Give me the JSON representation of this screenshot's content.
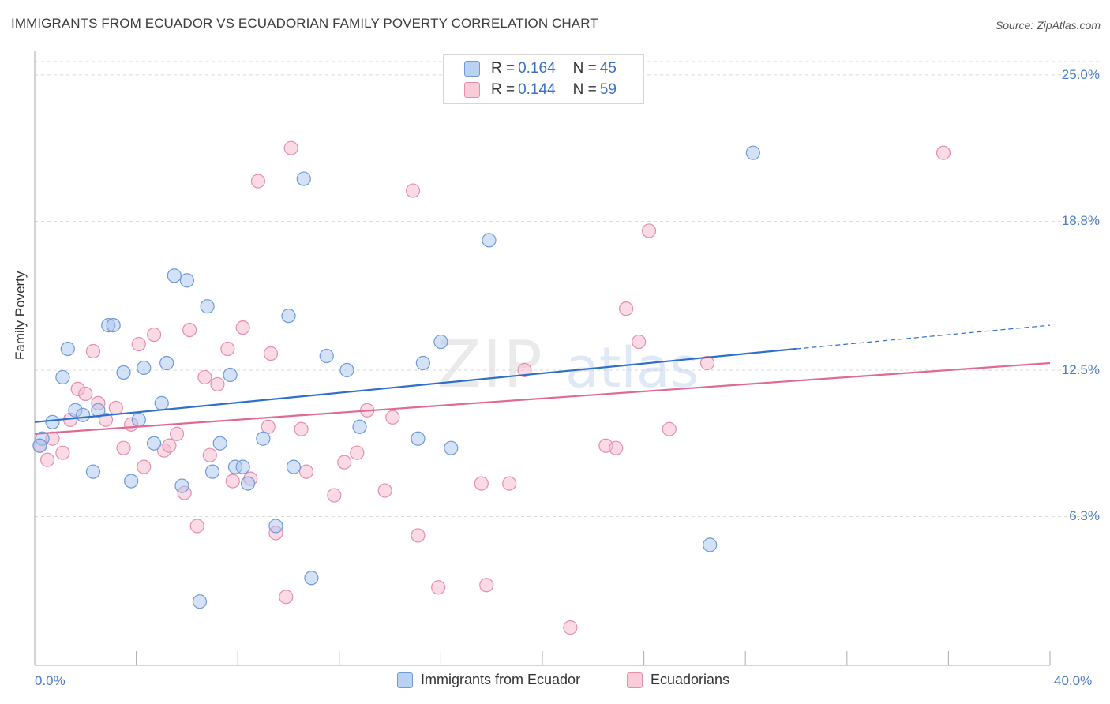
{
  "header": {
    "title": "IMMIGRANTS FROM ECUADOR VS ECUADORIAN FAMILY POVERTY CORRELATION CHART",
    "source": "Source: ZipAtlas.com"
  },
  "watermark": {
    "part1": "ZIP",
    "part2": "atlas"
  },
  "legend": {
    "rows": [
      {
        "r_label": "R = ",
        "r_value": "0.164",
        "n_label": "N = ",
        "n_value": "45"
      },
      {
        "r_label": "R = ",
        "r_value": "0.144",
        "n_label": "N = ",
        "n_value": "59"
      }
    ]
  },
  "bottom_legend": {
    "series1": "Immigrants from Ecuador",
    "series2": "Ecuadorians"
  },
  "colors": {
    "blue_fill": "#a9c6ef",
    "blue_stroke": "#6f9ad6",
    "blue_line": "#2f6fcc",
    "pink_fill": "#f5b6ca",
    "pink_stroke": "#e58fab",
    "pink_line": "#e06a93",
    "tick_text": "#4a7cc9"
  },
  "chart_data": {
    "type": "scatter",
    "title": "IMMIGRANTS FROM ECUADOR VS ECUADORIAN FAMILY POVERTY CORRELATION CHART",
    "xlabel": "",
    "ylabel": "Family Poverty",
    "xlim": [
      0,
      40
    ],
    "ylim": [
      0,
      26
    ],
    "x_tick_labels": [
      "0.0%",
      "40.0%"
    ],
    "y_ticks": [
      {
        "value": 6.3,
        "label": "6.3%"
      },
      {
        "value": 12.5,
        "label": "12.5%"
      },
      {
        "value": 18.8,
        "label": "18.8%"
      },
      {
        "value": 25.0,
        "label": "25.0%"
      }
    ],
    "grid": "horizontal dashed",
    "legend_position": "top-center",
    "series": [
      {
        "name": "Immigrants from Ecuador",
        "color": "#a9c6ef",
        "trend": {
          "x0": 0,
          "y0": 10.3,
          "x1": 30,
          "y1": 13.4,
          "dashed_to_x": 40,
          "dashed_to_y": 14.4
        },
        "points": [
          [
            0.3,
            9.6
          ],
          [
            0.7,
            10.3
          ],
          [
            1.3,
            13.4
          ],
          [
            1.1,
            12.2
          ],
          [
            1.6,
            10.8
          ],
          [
            1.9,
            10.6
          ],
          [
            2.3,
            8.2
          ],
          [
            2.5,
            10.8
          ],
          [
            2.9,
            14.4
          ],
          [
            3.1,
            14.4
          ],
          [
            3.5,
            12.4
          ],
          [
            3.8,
            7.8
          ],
          [
            4.1,
            10.4
          ],
          [
            4.3,
            12.6
          ],
          [
            4.7,
            9.4
          ],
          [
            5.0,
            11.1
          ],
          [
            5.2,
            12.8
          ],
          [
            5.5,
            16.5
          ],
          [
            5.8,
            7.6
          ],
          [
            6.0,
            16.3
          ],
          [
            6.5,
            2.7
          ],
          [
            6.8,
            15.2
          ],
          [
            7.0,
            8.2
          ],
          [
            7.3,
            9.4
          ],
          [
            7.7,
            12.3
          ],
          [
            7.9,
            8.4
          ],
          [
            8.2,
            8.4
          ],
          [
            8.4,
            7.7
          ],
          [
            9.0,
            9.6
          ],
          [
            9.5,
            5.9
          ],
          [
            10.0,
            14.8
          ],
          [
            10.2,
            8.4
          ],
          [
            10.6,
            20.6
          ],
          [
            10.9,
            3.7
          ],
          [
            11.5,
            13.1
          ],
          [
            12.3,
            12.5
          ],
          [
            12.8,
            10.1
          ],
          [
            15.1,
            9.6
          ],
          [
            15.3,
            12.8
          ],
          [
            16.0,
            13.7
          ],
          [
            16.4,
            9.2
          ],
          [
            17.9,
            18.0
          ],
          [
            26.6,
            5.1
          ],
          [
            28.3,
            21.7
          ],
          [
            0.2,
            9.3
          ]
        ]
      },
      {
        "name": "Ecuadorians",
        "color": "#f5b6ca",
        "trend": {
          "x0": 0,
          "y0": 9.8,
          "x1": 40,
          "y1": 12.8
        },
        "points": [
          [
            0.2,
            9.3
          ],
          [
            0.5,
            8.7
          ],
          [
            0.7,
            9.6
          ],
          [
            1.1,
            9.0
          ],
          [
            1.4,
            10.4
          ],
          [
            1.7,
            11.7
          ],
          [
            2.0,
            11.5
          ],
          [
            2.3,
            13.3
          ],
          [
            2.5,
            11.1
          ],
          [
            2.8,
            10.4
          ],
          [
            3.2,
            10.9
          ],
          [
            3.5,
            9.2
          ],
          [
            3.8,
            10.2
          ],
          [
            4.1,
            13.6
          ],
          [
            4.3,
            8.4
          ],
          [
            4.7,
            14.0
          ],
          [
            5.1,
            9.1
          ],
          [
            5.3,
            9.3
          ],
          [
            5.6,
            9.8
          ],
          [
            5.9,
            7.3
          ],
          [
            6.1,
            14.2
          ],
          [
            6.4,
            5.9
          ],
          [
            6.7,
            12.2
          ],
          [
            6.9,
            8.9
          ],
          [
            7.2,
            11.9
          ],
          [
            7.6,
            13.4
          ],
          [
            7.8,
            7.8
          ],
          [
            8.2,
            14.3
          ],
          [
            8.5,
            7.9
          ],
          [
            8.8,
            20.5
          ],
          [
            9.2,
            10.1
          ],
          [
            9.3,
            13.2
          ],
          [
            9.5,
            5.6
          ],
          [
            9.9,
            2.9
          ],
          [
            10.1,
            21.9
          ],
          [
            10.5,
            10.0
          ],
          [
            10.7,
            8.2
          ],
          [
            11.8,
            7.2
          ],
          [
            12.2,
            8.6
          ],
          [
            12.7,
            9.0
          ],
          [
            13.1,
            10.8
          ],
          [
            13.8,
            7.4
          ],
          [
            14.1,
            10.5
          ],
          [
            14.9,
            20.1
          ],
          [
            15.1,
            5.5
          ],
          [
            15.9,
            3.3
          ],
          [
            17.6,
            7.7
          ],
          [
            17.8,
            3.4
          ],
          [
            18.7,
            7.7
          ],
          [
            19.3,
            12.5
          ],
          [
            21.1,
            1.6
          ],
          [
            22.5,
            9.3
          ],
          [
            22.9,
            9.2
          ],
          [
            23.3,
            15.1
          ],
          [
            23.8,
            13.7
          ],
          [
            24.2,
            18.4
          ],
          [
            25.0,
            10.0
          ],
          [
            26.5,
            12.8
          ],
          [
            35.8,
            21.7
          ]
        ]
      }
    ]
  }
}
